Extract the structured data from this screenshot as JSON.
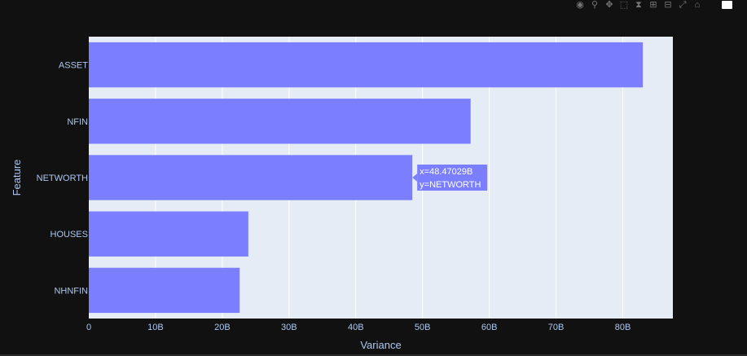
{
  "modebar": {
    "icons": [
      "camera-icon",
      "zoom-icon",
      "pan-icon",
      "box-select-icon",
      "lasso-select-icon",
      "zoom-in-icon",
      "zoom-out-icon",
      "autoscale-icon",
      "home-icon",
      "plotly-logo-icon"
    ]
  },
  "chart_data": {
    "type": "bar",
    "orientation": "horizontal",
    "categories": [
      "ASSET",
      "NFIN",
      "NETWORTH",
      "HOUSES",
      "NHNFIN"
    ],
    "values": [
      83.0,
      57.2,
      48.47029,
      23.9,
      22.6
    ],
    "xlabel": "Variance",
    "ylabel": "Feature",
    "xlim": [
      0,
      87.5
    ],
    "xticks": [
      {
        "v": 0,
        "label": "0"
      },
      {
        "v": 10,
        "label": "10B"
      },
      {
        "v": 20,
        "label": "20B"
      },
      {
        "v": 30,
        "label": "30B"
      },
      {
        "v": 40,
        "label": "40B"
      },
      {
        "v": 50,
        "label": "50B"
      },
      {
        "v": 60,
        "label": "60B"
      },
      {
        "v": 70,
        "label": "70B"
      },
      {
        "v": 80,
        "label": "80B"
      }
    ],
    "grid": true,
    "bar_color": "#7a7eff",
    "plot_bg": "#e5ecf6",
    "paper_bg": "#111111",
    "tick_color": "#aec7f0",
    "hover": {
      "category": "NETWORTH",
      "line1": "x=48.47029B",
      "line2": "y=NETWORTH"
    }
  }
}
